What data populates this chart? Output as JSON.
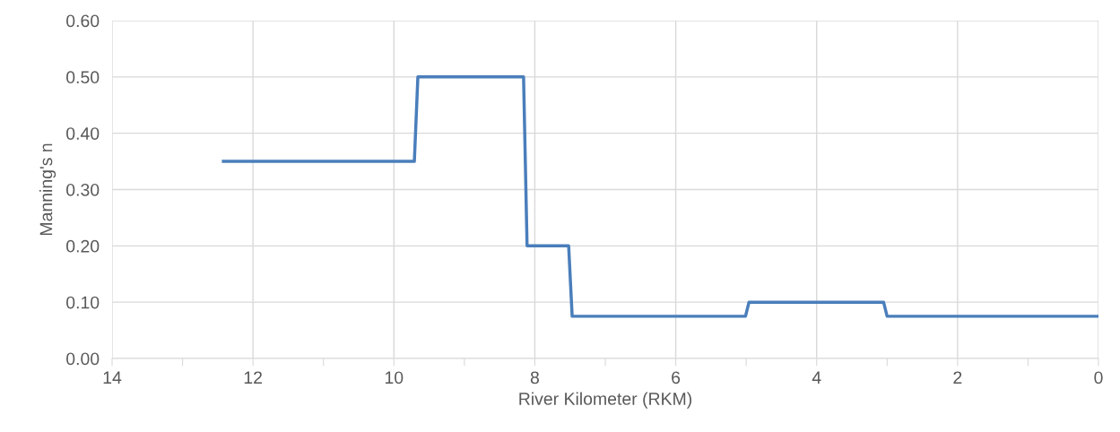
{
  "chart_data": {
    "type": "line",
    "xlabel": "River Kilometer (RKM)",
    "ylabel": "Manning's n",
    "series": [
      {
        "color": "#4a7ebb",
        "x": [
          12.42,
          9.71,
          9.66,
          8.16,
          8.11,
          7.52,
          7.47,
          5.01,
          4.96,
          3.05,
          3.0,
          0
        ],
        "values": [
          0.35,
          0.35,
          0.5,
          0.5,
          0.2,
          0.2,
          0.075,
          0.075,
          0.1,
          0.1,
          0.075,
          0.075
        ]
      }
    ],
    "xlim": [
      14,
      0
    ],
    "ylim": [
      0,
      0.6
    ],
    "xticks": [
      14,
      {
        "value": 13,
        "label": null
      },
      12,
      {
        "value": 11,
        "label": null
      },
      10,
      {
        "value": 9,
        "label": null
      },
      8,
      {
        "value": 7,
        "label": null
      },
      6,
      {
        "value": 5,
        "label": null
      },
      4,
      {
        "value": 3,
        "label": null
      },
      2,
      {
        "value": 1,
        "label": null
      },
      0
    ],
    "yticks": [
      {
        "value": 0,
        "label": "0.00"
      },
      {
        "value": 0.1,
        "label": "0.10"
      },
      {
        "value": 0.2,
        "label": "0.20"
      },
      {
        "value": 0.3,
        "label": "0.30"
      },
      {
        "value": 0.4,
        "label": "0.40"
      },
      {
        "value": 0.5,
        "label": "0.50"
      },
      {
        "value": 0.6,
        "label": "0.60"
      }
    ],
    "grid": true,
    "marker": "none",
    "line_style": "solid",
    "legend": false
  }
}
